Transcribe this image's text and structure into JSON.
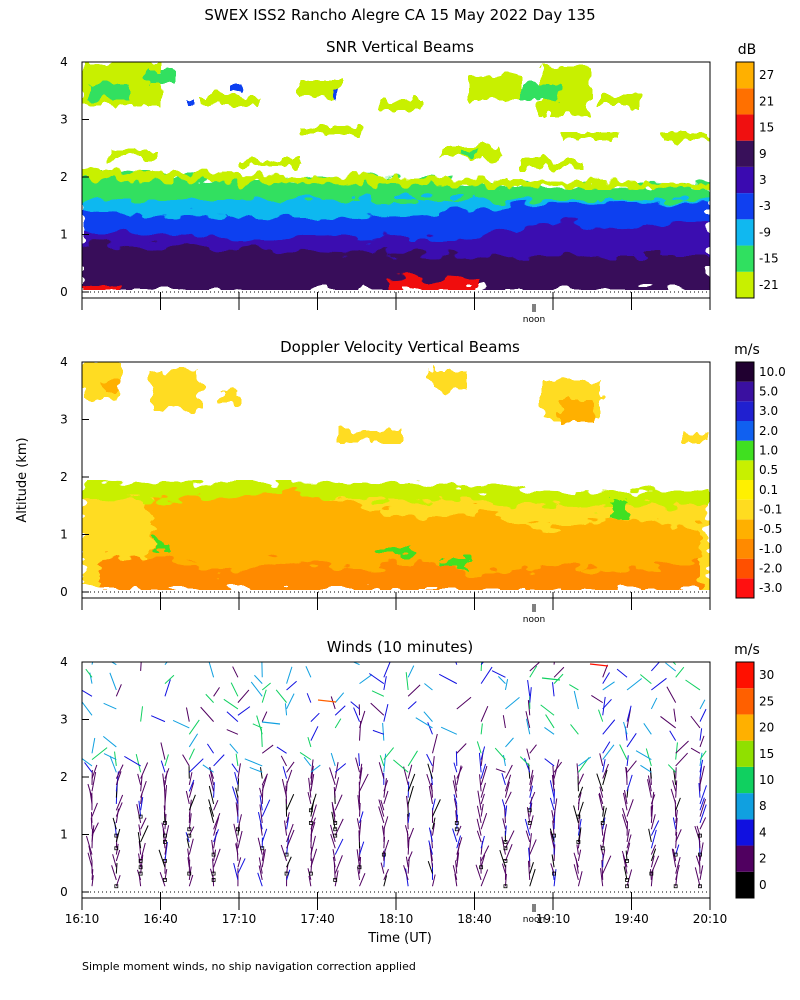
{
  "figure": {
    "title": "SWEX ISS2 Rancho Alegre CA  15 May 2022 Day 135",
    "ylabel": "Altitude (km)",
    "xlabel": "Time (UT)",
    "footnote": "Simple moment winds, no ship navigation correction applied",
    "noon_label": "noon"
  },
  "chart_data": [
    {
      "type": "heatmap",
      "title": "SNR Vertical Beams",
      "ylim": [
        0,
        4
      ],
      "yticks": [
        "0",
        "1",
        "2",
        "3",
        "4"
      ],
      "colorbar": {
        "unit": "dB",
        "colors": [
          "#c8f000",
          "#30e060",
          "#10b8f0",
          "#1040f0",
          "#3a0ab0",
          "#38105a",
          "#f01010",
          "#ff7000",
          "#ffb000"
        ],
        "labels": [
          "-21",
          "-15",
          "-9",
          "-3",
          "3",
          "9",
          "15",
          "21",
          "27"
        ]
      },
      "profile_by_altitude_km": [
        {
          "y": 0.1,
          "value": 15
        },
        {
          "y": 0.5,
          "value": 9
        },
        {
          "y": 1.0,
          "value": 3
        },
        {
          "y": 1.3,
          "value": -3
        },
        {
          "y": 1.6,
          "value": -9
        },
        {
          "y": 1.9,
          "value": -15
        },
        {
          "y": 2.1,
          "value": -21
        },
        {
          "y": 3.7,
          "value": -18
        }
      ]
    },
    {
      "type": "heatmap",
      "title": "Doppler Velocity Vertical Beams",
      "ylim": [
        0,
        4
      ],
      "yticks": [
        "0",
        "1",
        "2",
        "3",
        "4"
      ],
      "colorbar": {
        "unit": "m/s",
        "colors": [
          "#ff1010",
          "#ff5000",
          "#ff8a00",
          "#ffb000",
          "#ffdc20",
          "#fff000",
          "#c8f000",
          "#40e020",
          "#1060f0",
          "#2020d0",
          "#3a10a0",
          "#200030"
        ],
        "labels": [
          "-3.0",
          "-2.0",
          "-1.0",
          "-0.5",
          "-0.1",
          "0.1",
          "0.5",
          "1.0",
          "2.0",
          "3.0",
          "5.0",
          "10.0"
        ]
      },
      "profile_by_altitude_km": [
        {
          "y": 0.3,
          "value": -1.0
        },
        {
          "y": 1.0,
          "value": -0.5
        },
        {
          "y": 1.8,
          "value": -0.1
        },
        {
          "y": 3.5,
          "value": 0.3
        }
      ]
    },
    {
      "type": "scatter",
      "title": "Winds (10 minutes)",
      "ylim": [
        0,
        4
      ],
      "yticks": [
        "0",
        "1",
        "2",
        "3",
        "4"
      ],
      "xticks": [
        "16:10",
        "16:40",
        "17:10",
        "17:40",
        "18:10",
        "18:40",
        "19:10",
        "19:40",
        "20:10"
      ],
      "colorbar": {
        "unit": "m/s",
        "colors": [
          "#000000",
          "#500060",
          "#1010e0",
          "#10a0e0",
          "#10d060",
          "#90e000",
          "#ffb000",
          "#ff6000",
          "#ff1000"
        ],
        "labels": [
          "0",
          "2",
          "4",
          "8",
          "10",
          "15",
          "20",
          "25",
          "30"
        ]
      }
    }
  ]
}
